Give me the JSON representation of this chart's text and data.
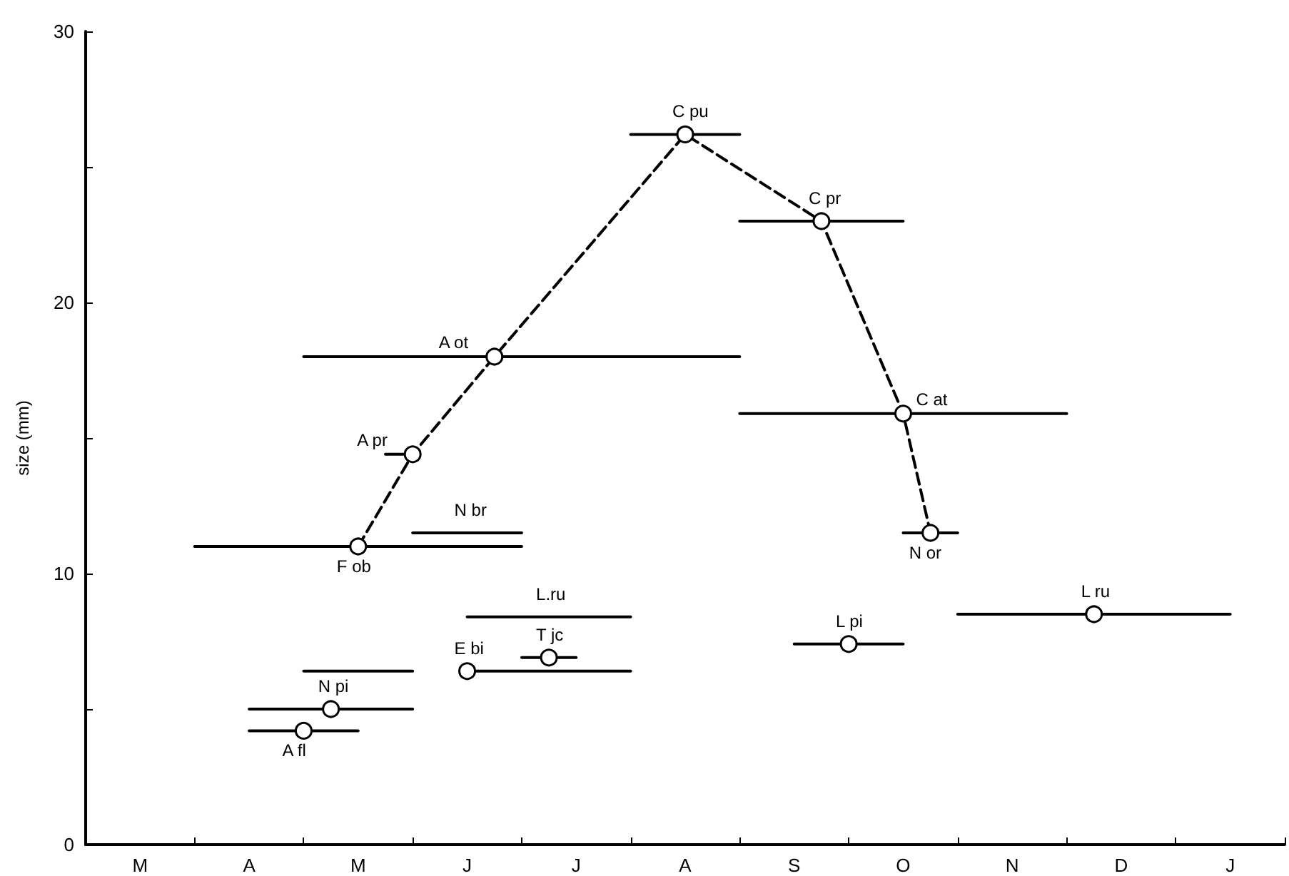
{
  "chart_data": {
    "type": "line",
    "ylabel": "size (mm)",
    "categories": [
      null,
      null,
      "M",
      null,
      null,
      null,
      "A",
      null,
      null,
      null,
      "M",
      null,
      null,
      null,
      "J",
      null,
      null,
      null,
      "J",
      null,
      null,
      null,
      "A",
      null,
      null,
      null,
      "S",
      null,
      null,
      null,
      "O",
      null,
      null,
      null,
      "N",
      null,
      null,
      null,
      "D",
      null,
      null,
      null,
      "J",
      null,
      null
    ],
    "ylim": [
      0,
      30
    ],
    "yticks": [
      0,
      {
        "value": 5,
        "label": null
      },
      10,
      {
        "value": 15,
        "label": null
      },
      20,
      {
        "value": 25,
        "label": null
      },
      30
    ],
    "grid": false,
    "legend": false,
    "marker": "none",
    "line_style": "solid",
    "series": [
      {
        "name": "F ob",
        "color": "#000000",
        "values": [
          null,
          null,
          null,
          null,
          11,
          11,
          11,
          11,
          11,
          11,
          11,
          11,
          11,
          11,
          11,
          11,
          11,
          null,
          null,
          null,
          null,
          null,
          null,
          null,
          null,
          null,
          null,
          null,
          null,
          null,
          null,
          null,
          null,
          null,
          null,
          null,
          null,
          null,
          null,
          null,
          null,
          null,
          null,
          null,
          null
        ]
      },
      {
        "name": "A pr",
        "color": "#000000",
        "values": [
          null,
          null,
          null,
          null,
          null,
          null,
          null,
          null,
          null,
          null,
          null,
          14.4,
          14.4,
          null,
          null,
          null,
          null,
          null,
          null,
          null,
          null,
          null,
          null,
          null,
          null,
          null,
          null,
          null,
          null,
          null,
          null,
          null,
          null,
          null,
          null,
          null,
          null,
          null,
          null,
          null,
          null,
          null,
          null,
          null,
          null
        ]
      },
      {
        "name": "A ot",
        "color": "#000000",
        "values": [
          null,
          null,
          null,
          null,
          null,
          null,
          null,
          null,
          18,
          18,
          18,
          18,
          18,
          18,
          18,
          18,
          18,
          18,
          18,
          18,
          18,
          18,
          18,
          18,
          18,
          null,
          null,
          null,
          null,
          null,
          null,
          null,
          null,
          null,
          null,
          null,
          null,
          null,
          null,
          null,
          null,
          null,
          null,
          null,
          null
        ]
      },
      {
        "name": "C pu",
        "color": "#000000",
        "values": [
          null,
          null,
          null,
          null,
          null,
          null,
          null,
          null,
          null,
          null,
          null,
          null,
          null,
          null,
          null,
          null,
          null,
          null,
          null,
          null,
          26.2,
          26.2,
          26.2,
          26.2,
          26.2,
          null,
          null,
          null,
          null,
          null,
          null,
          null,
          null,
          null,
          null,
          null,
          null,
          null,
          null,
          null,
          null,
          null,
          null,
          null,
          null
        ]
      },
      {
        "name": "C pr",
        "color": "#000000",
        "values": [
          null,
          null,
          null,
          null,
          null,
          null,
          null,
          null,
          null,
          null,
          null,
          null,
          null,
          null,
          null,
          null,
          null,
          null,
          null,
          null,
          null,
          null,
          null,
          null,
          23,
          23,
          23,
          23,
          23,
          23,
          23,
          null,
          null,
          null,
          null,
          null,
          null,
          null,
          null,
          null,
          null,
          null,
          null,
          null,
          null
        ]
      },
      {
        "name": "C at",
        "color": "#000000",
        "values": [
          null,
          null,
          null,
          null,
          null,
          null,
          null,
          null,
          null,
          null,
          null,
          null,
          null,
          null,
          null,
          null,
          null,
          null,
          null,
          null,
          null,
          null,
          null,
          null,
          15.9,
          15.9,
          15.9,
          15.9,
          15.9,
          15.9,
          15.9,
          15.9,
          15.9,
          15.9,
          15.9,
          15.9,
          15.9,
          null,
          null,
          null,
          null,
          null,
          null,
          null,
          null
        ]
      },
      {
        "name": "N or",
        "color": "#000000",
        "values": [
          null,
          null,
          null,
          null,
          null,
          null,
          null,
          null,
          null,
          null,
          null,
          null,
          null,
          null,
          null,
          null,
          null,
          null,
          null,
          null,
          null,
          null,
          null,
          null,
          null,
          null,
          null,
          null,
          null,
          null,
          11.5,
          11.5,
          11.5,
          null,
          null,
          null,
          null,
          null,
          null,
          null,
          null,
          null,
          null,
          null,
          null
        ]
      },
      {
        "name": "L pi",
        "color": "#000000",
        "values": [
          null,
          null,
          null,
          null,
          null,
          null,
          null,
          null,
          null,
          null,
          null,
          null,
          null,
          null,
          null,
          null,
          null,
          null,
          null,
          null,
          null,
          null,
          null,
          null,
          null,
          null,
          7.4,
          7.4,
          7.4,
          7.4,
          7.4,
          null,
          null,
          null,
          null,
          null,
          null,
          null,
          null,
          null,
          null,
          null,
          null,
          null,
          null
        ]
      },
      {
        "name": "L ru",
        "color": "#000000",
        "values": [
          null,
          null,
          null,
          null,
          null,
          null,
          null,
          null,
          null,
          null,
          null,
          null,
          null,
          null,
          null,
          null,
          null,
          null,
          null,
          null,
          null,
          null,
          null,
          null,
          null,
          null,
          null,
          null,
          null,
          null,
          null,
          null,
          8.5,
          8.5,
          8.5,
          8.5,
          8.5,
          8.5,
          8.5,
          8.5,
          8.5,
          8.5,
          8.5,
          null,
          null
        ]
      },
      {
        "name": "N br",
        "color": "#000000",
        "values": [
          null,
          null,
          null,
          null,
          null,
          null,
          null,
          null,
          null,
          null,
          null,
          null,
          11.5,
          11.5,
          11.5,
          11.5,
          11.5,
          null,
          null,
          null,
          null,
          null,
          null,
          null,
          null,
          null,
          null,
          null,
          null,
          null,
          null,
          null,
          null,
          null,
          null,
          null,
          null,
          null,
          null,
          null,
          null,
          null,
          null,
          null,
          null
        ]
      },
      {
        "name": "L.ru",
        "color": "#000000",
        "values": [
          null,
          null,
          null,
          null,
          null,
          null,
          null,
          null,
          null,
          null,
          null,
          null,
          null,
          null,
          8.4,
          8.4,
          8.4,
          8.4,
          8.4,
          8.4,
          8.4,
          null,
          null,
          null,
          null,
          null,
          null,
          null,
          null,
          null,
          null,
          null,
          null,
          null,
          null,
          null,
          null,
          null,
          null,
          null,
          null,
          null,
          null,
          null,
          null
        ]
      },
      {
        "name": "E bi",
        "color": "#000000",
        "values": [
          null,
          null,
          null,
          null,
          null,
          null,
          null,
          null,
          null,
          null,
          null,
          null,
          null,
          null,
          6.4,
          6.4,
          6.4,
          6.4,
          6.4,
          6.4,
          6.4,
          null,
          null,
          null,
          null,
          null,
          null,
          null,
          null,
          null,
          null,
          null,
          null,
          null,
          null,
          null,
          null,
          null,
          null,
          null,
          null,
          null,
          null,
          null,
          null
        ]
      },
      {
        "name": "T jc",
        "color": "#000000",
        "values": [
          null,
          null,
          null,
          null,
          null,
          null,
          null,
          null,
          null,
          null,
          null,
          null,
          null,
          null,
          null,
          null,
          6.9,
          6.9,
          6.9,
          null,
          null,
          null,
          null,
          null,
          null,
          null,
          null,
          null,
          null,
          null,
          null,
          null,
          null,
          null,
          null,
          null,
          null,
          null,
          null,
          null,
          null,
          null,
          null,
          null,
          null
        ]
      },
      {
        "color": "#000000",
        "values": [
          null,
          null,
          null,
          null,
          null,
          null,
          null,
          null,
          6.4,
          6.4,
          6.4,
          6.4,
          6.4,
          null,
          null,
          null,
          null,
          null,
          null,
          null,
          null,
          null,
          null,
          null,
          null,
          null,
          null,
          null,
          null,
          null,
          null,
          null,
          null,
          null,
          null,
          null,
          null,
          null,
          null,
          null,
          null,
          null,
          null,
          null,
          null
        ]
      },
      {
        "name": "N pi",
        "color": "#000000",
        "values": [
          null,
          null,
          null,
          null,
          null,
          null,
          5,
          5,
          5,
          5,
          5,
          5,
          5,
          null,
          null,
          null,
          null,
          null,
          null,
          null,
          null,
          null,
          null,
          null,
          null,
          null,
          null,
          null,
          null,
          null,
          null,
          null,
          null,
          null,
          null,
          null,
          null,
          null,
          null,
          null,
          null,
          null,
          null,
          null,
          null
        ]
      },
      {
        "name": "A fl",
        "color": "#000000",
        "values": [
          null,
          null,
          null,
          null,
          null,
          null,
          4.2,
          4.2,
          4.2,
          4.2,
          4.2,
          null,
          null,
          null,
          null,
          null,
          null,
          null,
          null,
          null,
          null,
          null,
          null,
          null,
          null,
          null,
          null,
          null,
          null,
          null,
          null,
          null,
          null,
          null,
          null,
          null,
          null,
          null,
          null,
          null,
          null,
          null,
          null,
          null,
          null
        ]
      },
      {
        "color": "#000000",
        "line_style": "dashed",
        "marker": "circle",
        "values": [
          null,
          null,
          null,
          null,
          null,
          null,
          null,
          null,
          null,
          null,
          11,
          null,
          14.4,
          null,
          null,
          18,
          null,
          null,
          null,
          null,
          null,
          null,
          26.2,
          null,
          null,
          null,
          null,
          23,
          null,
          null,
          15.9,
          11.5,
          null,
          null,
          null,
          null,
          null,
          null,
          null,
          null,
          null,
          null,
          null,
          null,
          null
        ]
      },
      {
        "type": "scatter",
        "color": "#000000",
        "marker": "circle",
        "values": [
          null,
          null,
          null,
          null,
          null,
          null,
          null,
          null,
          4.2,
          5,
          null,
          null,
          null,
          null,
          6.4,
          null,
          null,
          6.9,
          null,
          null,
          null,
          null,
          null,
          null,
          null,
          null,
          null,
          null,
          7.4,
          null,
          null,
          null,
          null,
          null,
          null,
          null,
          null,
          8.5,
          null,
          null,
          null,
          null,
          null,
          null,
          null
        ]
      }
    ]
  }
}
